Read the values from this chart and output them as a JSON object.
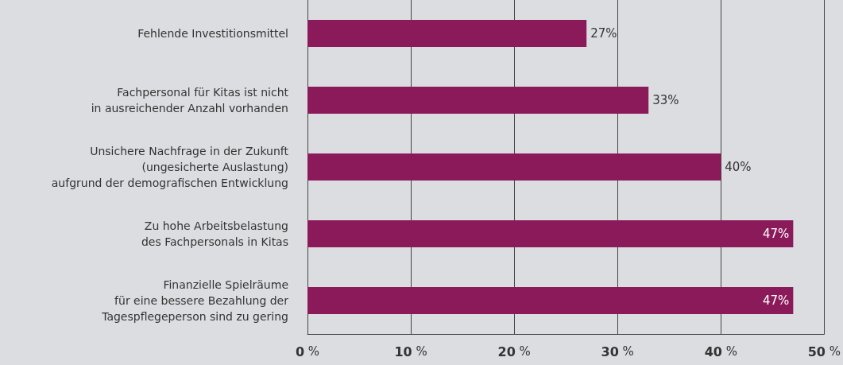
{
  "chart_data": {
    "type": "bar",
    "orientation": "horizontal",
    "categories": [
      "Fehlende Investitionsmittel",
      "Fachpersonal für Kitas ist nicht\nin ausreichender Anzahl vorhanden",
      "Unsichere Nachfrage in der Zukunft\n(ungesicherte Auslastung)\naufgrund der demografischen Entwicklung",
      "Zu hohe Arbeitsbelastung\ndes Fachpersonals in Kitas",
      "Finanzielle Spielräume\nfür eine bessere Bezahlung der\nTagespflegeperson sind zu gering"
    ],
    "values": [
      27,
      33,
      40,
      47,
      47
    ],
    "value_labels": [
      "27%",
      "33%",
      "40%",
      "47%",
      "47%"
    ],
    "color": "#8b1a5a",
    "xlim": [
      0,
      50
    ],
    "xticks": [
      {
        "value": 0,
        "label": "0 %"
      },
      {
        "value": 10,
        "label": "10 %"
      },
      {
        "value": 20,
        "label": "20 %"
      },
      {
        "value": 30,
        "label": "30 %"
      },
      {
        "value": 40,
        "label": "40 %"
      },
      {
        "value": 50,
        "label": "50 %"
      }
    ],
    "grid": "x"
  }
}
